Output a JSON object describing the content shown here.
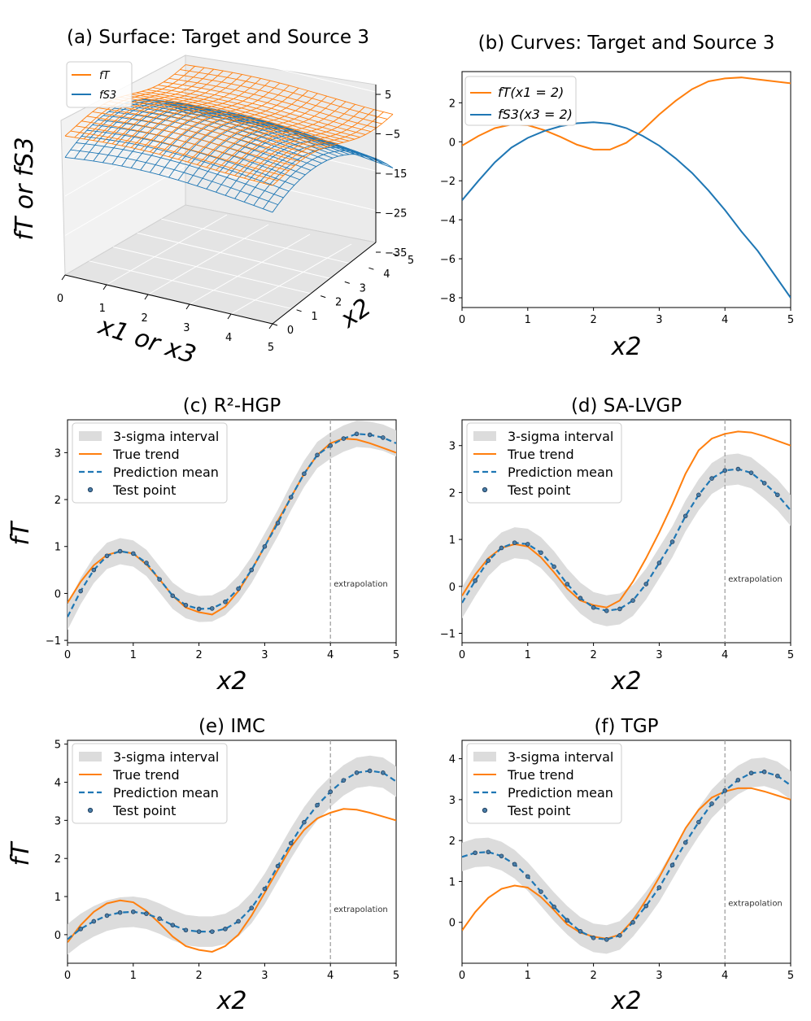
{
  "colors": {
    "target": "#ff7f0e",
    "source": "#1f77b4",
    "band": "#dcdcdc",
    "vline": "#9a9a9a"
  },
  "chart_data": [
    {
      "id": "a",
      "type": "surface",
      "title": "(a) Surface: Target and Source 3",
      "xlabel": "x1 or x3",
      "ylabel": "x2",
      "zlabel": "fT or fS3",
      "xticks": [
        "0",
        "1",
        "2",
        "3",
        "4",
        "5"
      ],
      "yticks": [
        "0",
        "1",
        "2",
        "3",
        "4",
        "5"
      ],
      "zticks": [
        "5",
        "−5",
        "−15",
        "−25",
        "−35"
      ],
      "zlim": [
        -35,
        5
      ],
      "legend": [
        "fT",
        "fS3"
      ],
      "series": [
        {
          "name": "fT",
          "description": "target surface, range about -1 to 5"
        },
        {
          "name": "fS3",
          "description": "source 3 surface, range about -33 to 1"
        }
      ]
    },
    {
      "id": "b",
      "type": "line",
      "title": "(b) Curves: Target and Source 3",
      "xlabel": "x2",
      "ylabel": "",
      "xlim": [
        0,
        5
      ],
      "ylim": [
        -8.5,
        3.6
      ],
      "xticks": [
        "0",
        "1",
        "2",
        "3",
        "4",
        "5"
      ],
      "yticks": [
        "2",
        "0",
        "−2",
        "−4",
        "−6",
        "−8"
      ],
      "legend": [
        "fT(x1 = 2)",
        "fS3(x3 = 2)"
      ],
      "x": [
        0,
        0.25,
        0.5,
        0.75,
        1,
        1.25,
        1.5,
        1.75,
        2,
        2.25,
        2.5,
        2.75,
        3,
        3.25,
        3.5,
        3.75,
        4,
        4.25,
        4.5,
        4.75,
        5
      ],
      "series": [
        {
          "name": "fT(x1 = 2)",
          "values": [
            -0.2,
            0.3,
            0.7,
            0.88,
            0.85,
            0.6,
            0.25,
            -0.15,
            -0.4,
            -0.4,
            -0.05,
            0.6,
            1.4,
            2.1,
            2.7,
            3.1,
            3.25,
            3.3,
            3.2,
            3.1,
            3.0
          ]
        },
        {
          "name": "fS3(x3 = 2)",
          "values": [
            -3.0,
            -2.0,
            -1.05,
            -0.3,
            0.2,
            0.55,
            0.8,
            0.95,
            1.0,
            0.93,
            0.7,
            0.3,
            -0.2,
            -0.85,
            -1.6,
            -2.5,
            -3.5,
            -4.6,
            -5.6,
            -6.8,
            -8.0
          ]
        }
      ]
    },
    {
      "id": "c",
      "type": "line",
      "title": "(c) R²-HGP",
      "xlabel": "x2",
      "ylabel": "fT",
      "xlim": [
        0,
        5
      ],
      "ylim": [
        -1.05,
        3.7
      ],
      "xticks": [
        "0",
        "1",
        "2",
        "3",
        "4",
        "5"
      ],
      "yticks": [
        "−1",
        "0",
        "1",
        "2",
        "3"
      ],
      "annotation": "extrapolation",
      "vline_x": 4,
      "sigma": 0.28,
      "legend": [
        "3-sigma interval",
        "True trend",
        "Prediction mean",
        "Test point"
      ],
      "x": [
        0,
        0.2,
        0.4,
        0.6,
        0.8,
        1,
        1.2,
        1.4,
        1.6,
        1.8,
        2,
        2.2,
        2.4,
        2.6,
        2.8,
        3,
        3.2,
        3.4,
        3.6,
        3.8,
        4,
        4.2,
        4.4,
        4.6,
        4.8,
        5
      ],
      "true": [
        -0.2,
        0.25,
        0.6,
        0.82,
        0.9,
        0.85,
        0.62,
        0.3,
        -0.05,
        -0.3,
        -0.4,
        -0.45,
        -0.28,
        0.05,
        0.5,
        1.0,
        1.55,
        2.05,
        2.55,
        2.95,
        3.2,
        3.3,
        3.28,
        3.2,
        3.1,
        3.0
      ],
      "mean": [
        -0.5,
        0.05,
        0.5,
        0.8,
        0.9,
        0.85,
        0.65,
        0.3,
        -0.05,
        -0.25,
        -0.33,
        -0.32,
        -0.18,
        0.1,
        0.5,
        1.0,
        1.5,
        2.05,
        2.55,
        2.95,
        3.15,
        3.3,
        3.4,
        3.38,
        3.32,
        3.2
      ],
      "test_points": [
        0.05,
        0.5,
        0.8,
        0.9,
        0.85,
        0.65,
        0.3,
        -0.05,
        -0.25,
        -0.33,
        -0.32,
        -0.18,
        0.1,
        0.5,
        1.0,
        1.5,
        2.05,
        2.55,
        2.95,
        3.15,
        3.3,
        3.4,
        3.38,
        3.32
      ]
    },
    {
      "id": "d",
      "type": "line",
      "title": "(d) SA-LVGP",
      "xlabel": "x2",
      "ylabel": "",
      "xlim": [
        0,
        5
      ],
      "ylim": [
        -1.2,
        3.55
      ],
      "xticks": [
        "0",
        "1",
        "2",
        "3",
        "4",
        "5"
      ],
      "yticks": [
        "−1",
        "0",
        "1",
        "2",
        "3"
      ],
      "annotation": "extrapolation",
      "vline_x": 4,
      "sigma": 0.33,
      "legend": [
        "3-sigma interval",
        "True trend",
        "Prediction mean",
        "Test point"
      ],
      "x": [
        0,
        0.2,
        0.4,
        0.6,
        0.8,
        1,
        1.2,
        1.4,
        1.6,
        1.8,
        2,
        2.2,
        2.4,
        2.6,
        2.8,
        3,
        3.2,
        3.4,
        3.6,
        3.8,
        4,
        4.2,
        4.4,
        4.6,
        4.8,
        5
      ],
      "true": [
        -0.2,
        0.25,
        0.6,
        0.82,
        0.9,
        0.85,
        0.62,
        0.3,
        -0.05,
        -0.3,
        -0.4,
        -0.45,
        -0.3,
        0.1,
        0.6,
        1.15,
        1.75,
        2.4,
        2.9,
        3.15,
        3.25,
        3.3,
        3.28,
        3.2,
        3.1,
        3.0
      ],
      "mean": [
        -0.35,
        0.12,
        0.55,
        0.82,
        0.93,
        0.9,
        0.72,
        0.42,
        0.05,
        -0.25,
        -0.45,
        -0.52,
        -0.48,
        -0.3,
        0.05,
        0.5,
        0.95,
        1.5,
        1.95,
        2.3,
        2.47,
        2.5,
        2.42,
        2.2,
        1.95,
        1.62
      ],
      "test_points": [
        0.12,
        0.55,
        0.82,
        0.93,
        0.9,
        0.72,
        0.42,
        0.05,
        -0.25,
        -0.45,
        -0.52,
        -0.48,
        -0.3,
        0.05,
        0.5,
        0.95,
        1.5,
        1.95,
        2.3,
        2.47,
        2.5,
        2.42,
        2.2,
        1.95
      ]
    },
    {
      "id": "e",
      "type": "line",
      "title": "(e) IMC",
      "xlabel": "x2",
      "ylabel": "fT",
      "xlim": [
        0,
        5
      ],
      "ylim": [
        -0.75,
        5.1
      ],
      "xticks": [
        "0",
        "1",
        "2",
        "3",
        "4",
        "5"
      ],
      "yticks": [
        "0",
        "1",
        "2",
        "3",
        "4",
        "5"
      ],
      "annotation": "extrapolation",
      "vline_x": 4,
      "sigma": 0.4,
      "legend": [
        "3-sigma interval",
        "True trend",
        "Prediction mean",
        "Test point"
      ],
      "x": [
        0,
        0.2,
        0.4,
        0.6,
        0.8,
        1,
        1.2,
        1.4,
        1.6,
        1.8,
        2,
        2.2,
        2.4,
        2.6,
        2.8,
        3,
        3.2,
        3.4,
        3.6,
        3.8,
        4,
        4.2,
        4.4,
        4.6,
        4.8,
        5
      ],
      "true": [
        -0.2,
        0.25,
        0.6,
        0.82,
        0.9,
        0.85,
        0.62,
        0.3,
        -0.05,
        -0.3,
        -0.4,
        -0.45,
        -0.3,
        0.0,
        0.5,
        1.1,
        1.7,
        2.3,
        2.75,
        3.05,
        3.2,
        3.3,
        3.28,
        3.2,
        3.1,
        3.0
      ],
      "mean": [
        -0.12,
        0.15,
        0.35,
        0.5,
        0.58,
        0.6,
        0.55,
        0.42,
        0.25,
        0.12,
        0.08,
        0.08,
        0.15,
        0.35,
        0.7,
        1.2,
        1.8,
        2.4,
        2.95,
        3.4,
        3.75,
        4.05,
        4.25,
        4.3,
        4.25,
        4.02
      ],
      "test_points": [
        0.15,
        0.35,
        0.5,
        0.58,
        0.6,
        0.55,
        0.42,
        0.25,
        0.12,
        0.08,
        0.08,
        0.15,
        0.35,
        0.7,
        1.2,
        1.8,
        2.4,
        2.95,
        3.4,
        3.75,
        4.05,
        4.25,
        4.3,
        4.25
      ]
    },
    {
      "id": "f",
      "type": "line",
      "title": "(f) TGP",
      "xlabel": "x2",
      "ylabel": "",
      "xlim": [
        0,
        5
      ],
      "ylim": [
        -1.0,
        4.45
      ],
      "xticks": [
        "0",
        "1",
        "2",
        "3",
        "4",
        "5"
      ],
      "yticks": [
        "0",
        "1",
        "2",
        "3",
        "4"
      ],
      "annotation": "extrapolation",
      "vline_x": 4,
      "sigma": 0.35,
      "legend": [
        "3-sigma interval",
        "True trend",
        "Prediction mean",
        "Test point"
      ],
      "x": [
        0,
        0.2,
        0.4,
        0.6,
        0.8,
        1,
        1.2,
        1.4,
        1.6,
        1.8,
        2,
        2.2,
        2.4,
        2.6,
        2.8,
        3,
        3.2,
        3.4,
        3.6,
        3.8,
        4,
        4.2,
        4.4,
        4.6,
        4.8,
        5
      ],
      "true": [
        -0.2,
        0.25,
        0.6,
        0.82,
        0.9,
        0.85,
        0.62,
        0.3,
        -0.05,
        -0.25,
        -0.35,
        -0.4,
        -0.3,
        0.05,
        0.55,
        1.1,
        1.7,
        2.3,
        2.75,
        3.05,
        3.2,
        3.28,
        3.28,
        3.2,
        3.1,
        3.0
      ],
      "mean": [
        1.6,
        1.7,
        1.72,
        1.62,
        1.42,
        1.12,
        0.75,
        0.38,
        0.05,
        -0.22,
        -0.38,
        -0.42,
        -0.32,
        0.0,
        0.4,
        0.85,
        1.4,
        1.95,
        2.45,
        2.9,
        3.22,
        3.48,
        3.65,
        3.68,
        3.58,
        3.35
      ],
      "test_points": [
        1.7,
        1.72,
        1.62,
        1.42,
        1.12,
        0.75,
        0.38,
        0.05,
        -0.22,
        -0.38,
        -0.42,
        -0.32,
        0.0,
        0.4,
        0.85,
        1.4,
        1.95,
        2.45,
        2.9,
        3.22,
        3.48,
        3.65,
        3.68,
        3.58
      ]
    }
  ]
}
